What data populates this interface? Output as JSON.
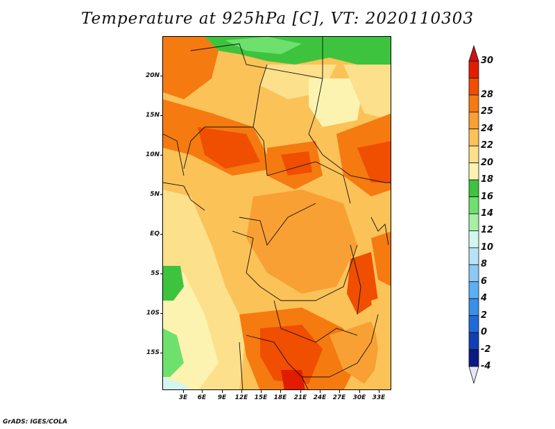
{
  "title": "Temperature at 925hPa [C], VT: 2020110303",
  "credit": "GrADS: IGES/COLA",
  "map": {
    "lat_labels": [
      "20N",
      "15N",
      "10N",
      "5N",
      "EQ",
      "5S",
      "10S",
      "15S"
    ],
    "lon_labels": [
      "3E",
      "6E",
      "9E",
      "12E",
      "15E",
      "18E",
      "21E",
      "24E",
      "27E",
      "30E",
      "33E"
    ]
  },
  "colorbar": {
    "labels": [
      "30",
      "28",
      "25",
      "24",
      "22",
      "20",
      "18",
      "16",
      "14",
      "12",
      "10",
      "8",
      "6",
      "4",
      "2",
      "0",
      "-2",
      "-4"
    ],
    "colors": [
      "#e11c00",
      "#f04e00",
      "#f57a10",
      "#f8a034",
      "#fbc258",
      "#fde08c",
      "#fcf3b0",
      "#3ec33e",
      "#6ee06e",
      "#a6f0a6",
      "#d4f6f0",
      "#b8e2f8",
      "#8ccaf6",
      "#5ab0f2",
      "#3a8ee6",
      "#1e6ad6",
      "#1040b4",
      "#0a1a80"
    ],
    "top_color": "#d01010",
    "bottom_color": "#e6e6fa"
  }
}
